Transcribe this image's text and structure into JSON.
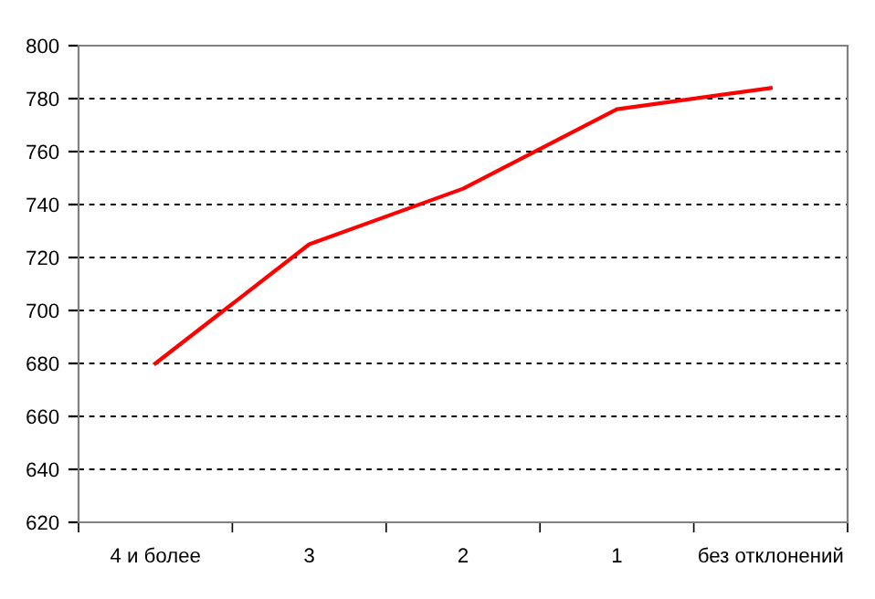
{
  "chart_data": {
    "type": "line",
    "categories": [
      "4 и более",
      "3",
      "2",
      "1",
      "без отклонений"
    ],
    "series": [
      {
        "color": "#ff0000",
        "values": [
          680,
          725,
          746,
          776,
          784
        ]
      }
    ],
    "ylim": [
      620,
      800
    ],
    "yticks": [
      620,
      640,
      660,
      680,
      700,
      720,
      740,
      760,
      780,
      800
    ],
    "grid": "y",
    "marker": "none",
    "line_style": "solid",
    "legend": false
  }
}
